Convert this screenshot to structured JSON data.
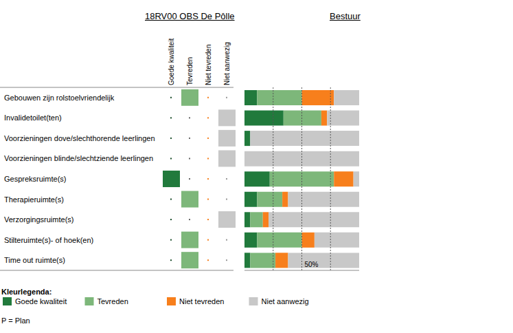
{
  "title": "18RV00 OBS De Pôlle",
  "subtitle": "Bestuur",
  "table": {
    "ratings": [
      "Tevreden",
      "Niet aanwezig",
      "Niet aanwezig",
      "Niet aanwezig",
      "Goede kwaliteit",
      "Tevreden",
      "Niet aanwezig",
      "Tevreden",
      "Tevreden"
    ]
  },
  "chart_data": {
    "type": "bar",
    "orientation": "horizontal",
    "stacked": true,
    "categories": [
      "Gebouwen zijn rolstoelvriendelijk",
      "Invalidetoilet(ten)",
      "Voorzieningen dove/slechthorende leerlingen",
      "Voorzieningen blinde/slechtziende leerlingen",
      "Gespreksruimte(s)",
      "Therapieruimte(s)",
      "Verzorgingsruimte(s)",
      "Stilteruimte(s)- of hoek(en)",
      "Time out ruimte(s)"
    ],
    "series": [
      {
        "name": "Goede kwaliteit",
        "color": "#217a3c",
        "values": [
          11,
          34,
          5,
          0,
          22,
          11,
          5,
          11,
          5
        ]
      },
      {
        "name": "Tevreden",
        "color": "#7db77a",
        "values": [
          39,
          33,
          0,
          0,
          56,
          22,
          11,
          39,
          22
        ]
      },
      {
        "name": "Niet tevreden",
        "color": "#f77f1c",
        "values": [
          28,
          5,
          0,
          0,
          17,
          5,
          5,
          11,
          11
        ]
      },
      {
        "name": "Niet aanwezig",
        "color": "#c8c8c8",
        "values": [
          22,
          28,
          95,
          100,
          5,
          62,
          79,
          39,
          62
        ]
      }
    ],
    "xlim": [
      0,
      100
    ],
    "xticks": [
      25,
      50,
      75
    ],
    "grid": true,
    "tick_labels": false,
    "annotations": [
      {
        "text": "50%",
        "x": 50
      }
    ]
  },
  "legend_title": "Kleurlegenda:",
  "note": "P = Plan"
}
